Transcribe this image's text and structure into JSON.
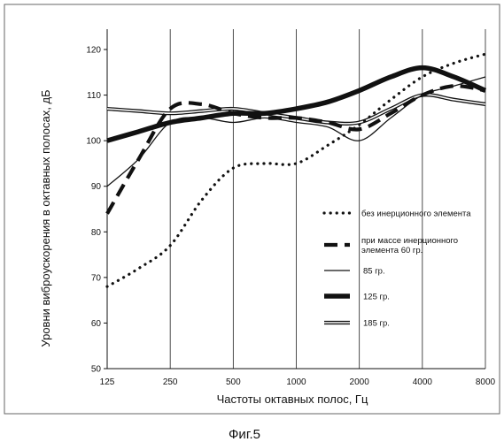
{
  "chart_data": {
    "type": "line",
    "title": "",
    "xlabel": "Частоты октавных полос, Гц",
    "ylabel": "Уровни виброускорения в октавных полосах, дБ",
    "x_categories": [
      "125",
      "250",
      "500",
      "1000",
      "2000",
      "4000",
      "8000"
    ],
    "x_scale": "log2",
    "ylim": [
      50,
      125
    ],
    "yticks": [
      50,
      60,
      70,
      80,
      90,
      100,
      110,
      120
    ],
    "grid": "vertical",
    "legend_position": "right",
    "caption": "Фиг.5",
    "series": [
      {
        "name": "без инерционного элемента",
        "style": "dotted",
        "color": "#111111",
        "x": [
          125,
          177,
          250,
          354,
          500,
          707,
          1000,
          1414,
          2000,
          2828,
          4000,
          5657,
          8000
        ],
        "y": [
          68,
          72,
          77,
          87,
          94,
          95,
          95,
          99,
          103.5,
          109,
          114,
          117,
          119
        ]
      },
      {
        "name": "при массе инерционного элемента 60 гр.",
        "style": "dashed",
        "color": "#111111",
        "x": [
          125,
          177,
          250,
          354,
          500,
          707,
          1000,
          1414,
          2000,
          2828,
          4000,
          5657,
          8000
        ],
        "y": [
          84,
          96,
          107,
          108,
          106,
          105,
          105,
          104,
          102.5,
          106,
          110,
          112,
          111
        ]
      },
      {
        "name": "85 гр.",
        "style": "thin",
        "color": "#111111",
        "x": [
          125,
          177,
          250,
          354,
          500,
          707,
          1000,
          1414,
          2000,
          2828,
          4000,
          5657,
          8000
        ],
        "y": [
          90,
          96,
          104,
          105,
          104,
          105,
          104,
          103,
          100,
          105,
          110,
          112,
          114
        ]
      },
      {
        "name": "125 гр.",
        "style": "thick",
        "color": "#111111",
        "x": [
          125,
          177,
          250,
          354,
          500,
          707,
          1000,
          1414,
          2000,
          2828,
          4000,
          5657,
          8000
        ],
        "y": [
          100,
          102,
          104,
          105,
          106,
          106,
          107,
          108.5,
          111,
          114,
          116,
          114,
          111
        ]
      },
      {
        "name": "185 гр.",
        "style": "double",
        "color": "#111111",
        "x": [
          125,
          177,
          250,
          354,
          500,
          707,
          1000,
          1414,
          2000,
          2828,
          4000,
          5657,
          8000
        ],
        "y": [
          107,
          106.5,
          106,
          106.5,
          107,
          106,
          105,
          104,
          104,
          107,
          110,
          109,
          108
        ]
      }
    ]
  }
}
